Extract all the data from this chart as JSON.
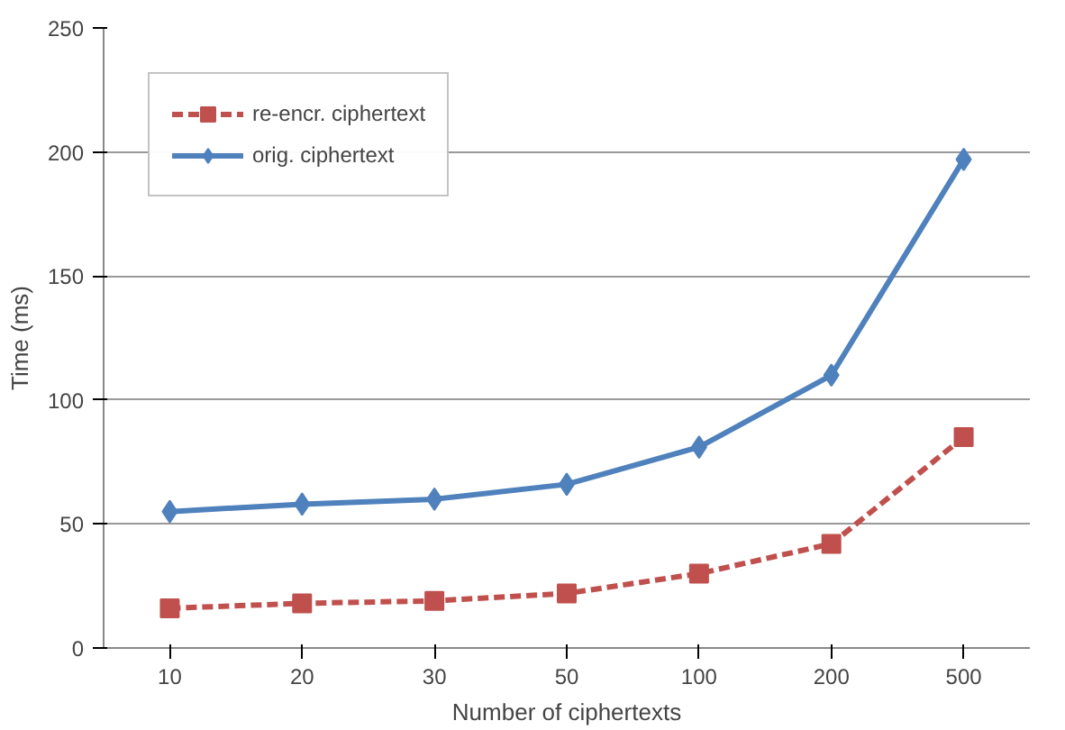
{
  "chart_data": {
    "type": "line",
    "xlabel": "Number of ciphertexts",
    "ylabel": "Time (ms)",
    "categories": [
      "10",
      "20",
      "30",
      "50",
      "100",
      "200",
      "500"
    ],
    "series": [
      {
        "name": "re-encr. ciphertext",
        "color": "#c0504d",
        "values": [
          16,
          18,
          19,
          22,
          30,
          42,
          85
        ],
        "marker": "square",
        "line_style": "dashed"
      },
      {
        "name": "orig. ciphertext",
        "color": "#4f81bd",
        "values": [
          55,
          58,
          60,
          66,
          81,
          110,
          197
        ],
        "marker": "diamond",
        "line_style": "solid"
      }
    ],
    "ylim": [
      0,
      250
    ],
    "yticks": [
      0,
      50,
      100,
      150,
      200,
      250
    ],
    "grid": "y",
    "legend": "top left"
  }
}
